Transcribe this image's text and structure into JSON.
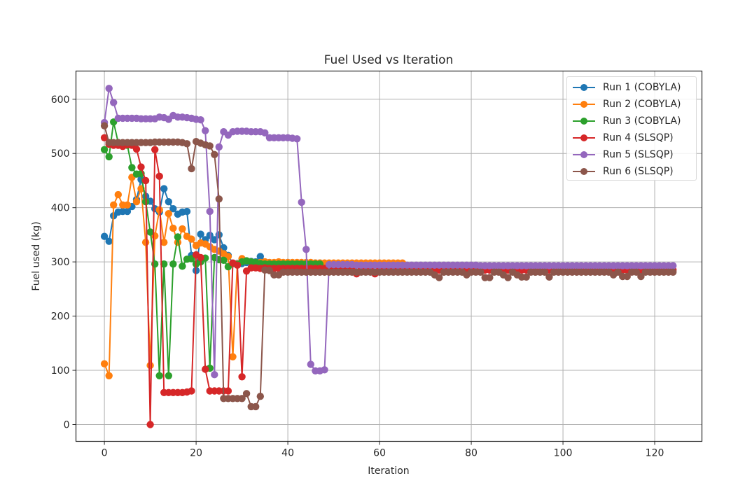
{
  "chart_data": {
    "type": "line",
    "title": "Fuel Used vs Iteration",
    "xlabel": "Iteration",
    "ylabel": "Fuel used (kg)",
    "xlim": [
      -6.2,
      130.3
    ],
    "ylim": [
      -31,
      652
    ],
    "xticks": [
      0,
      20,
      40,
      60,
      80,
      100,
      120
    ],
    "yticks": [
      0,
      100,
      200,
      300,
      400,
      500,
      600
    ],
    "grid": true,
    "legend_position": "upper right",
    "marker": "circle",
    "series": [
      {
        "name": "Run 1 (COBYLA)",
        "color": "#1f77b4",
        "x": [
          0,
          1,
          2,
          3,
          4,
          5,
          6,
          7,
          8,
          9,
          10,
          11,
          12,
          13,
          14,
          15,
          16,
          17,
          18,
          19,
          20,
          21,
          22,
          23,
          24,
          25,
          26,
          27,
          28,
          29,
          30,
          31,
          32,
          33,
          34,
          35,
          36,
          37,
          38,
          39,
          40,
          41,
          42,
          43,
          44,
          45,
          46,
          47
        ],
        "values": [
          347,
          338,
          385,
          392,
          393,
          393,
          402,
          415,
          452,
          421,
          412,
          398,
          392,
          435,
          411,
          398,
          388,
          392,
          393,
          312,
          284,
          351,
          341,
          349,
          341,
          350,
          326,
          312,
          297,
          297,
          297,
          299,
          301,
          300,
          310,
          300,
          298,
          298,
          298,
          298,
          299,
          298,
          298,
          298,
          298,
          298,
          298,
          298
        ]
      },
      {
        "name": "Run 2 (COBYLA)",
        "color": "#ff7f0e",
        "x": [
          0,
          1,
          2,
          3,
          4,
          5,
          6,
          7,
          8,
          9,
          10,
          11,
          12,
          13,
          14,
          15,
          16,
          17,
          18,
          19,
          20,
          21,
          22,
          23,
          24,
          25,
          26,
          27,
          28,
          29,
          30,
          31,
          32,
          33,
          34,
          35,
          36,
          37,
          38,
          39,
          40,
          41,
          42,
          43,
          44,
          45,
          46,
          47,
          48,
          49,
          50,
          51,
          52,
          53,
          54,
          55,
          56,
          57,
          58,
          59,
          60,
          61,
          62,
          63,
          64,
          65
        ],
        "values": [
          112,
          90,
          405,
          424,
          405,
          405,
          456,
          411,
          435,
          336,
          109,
          348,
          396,
          336,
          389,
          362,
          336,
          361,
          347,
          342,
          330,
          335,
          333,
          328,
          323,
          320,
          315,
          310,
          125,
          296,
          306,
          302,
          300,
          299,
          299,
          300,
          299,
          299,
          300,
          299,
          299,
          299,
          299,
          299,
          299,
          299,
          298,
          298,
          298,
          298,
          298,
          298,
          298,
          298,
          298,
          298,
          298,
          298,
          298,
          298,
          298,
          298,
          298,
          298,
          298,
          298
        ]
      },
      {
        "name": "Run 3 (COBYLA)",
        "color": "#2ca02c",
        "x": [
          0,
          1,
          2,
          3,
          4,
          5,
          6,
          7,
          8,
          9,
          10,
          11,
          12,
          13,
          14,
          15,
          16,
          17,
          18,
          19,
          20,
          21,
          22,
          23,
          24,
          25,
          26,
          27,
          28,
          29,
          30,
          31,
          32,
          33,
          34,
          35,
          36,
          37,
          38,
          39,
          40,
          41,
          42,
          43,
          44,
          45,
          46,
          47
        ],
        "values": [
          507,
          494,
          558,
          520,
          518,
          515,
          474,
          462,
          463,
          411,
          355,
          296,
          90,
          296,
          90,
          296,
          346,
          292,
          305,
          306,
          296,
          300,
          307,
          104,
          308,
          304,
          303,
          291,
          297,
          295,
          300,
          302,
          300,
          299,
          297,
          296,
          296,
          296,
          296,
          296,
          296,
          296,
          296,
          296,
          296,
          296,
          296,
          296
        ]
      },
      {
        "name": "Run 4 (SLSQP)",
        "color": "#d62728",
        "x": [
          0,
          1,
          2,
          3,
          4,
          5,
          6,
          7,
          8,
          9,
          10,
          11,
          12,
          13,
          14,
          15,
          16,
          17,
          18,
          19,
          20,
          21,
          22,
          23,
          24,
          25,
          26,
          27,
          28,
          29,
          30,
          31,
          32,
          33,
          34,
          35,
          36,
          37,
          38,
          39,
          40,
          41,
          42,
          43,
          44,
          45,
          46,
          47,
          48,
          49,
          50,
          51,
          52,
          53,
          54,
          55,
          56,
          57,
          58,
          59,
          60,
          61,
          62,
          63,
          64,
          65,
          66,
          67,
          68,
          69,
          70,
          71,
          72,
          73,
          74,
          75,
          76,
          77,
          78,
          79,
          80,
          81,
          82,
          83,
          84,
          85,
          86,
          87,
          88,
          89,
          90,
          91,
          92,
          93,
          94,
          95,
          96,
          97,
          98,
          99,
          100,
          101,
          102,
          103,
          104,
          105,
          106,
          107,
          108,
          109,
          110,
          111,
          112,
          113,
          114,
          115,
          116,
          117,
          118,
          119,
          120,
          121,
          122,
          123,
          124
        ],
        "values": [
          529,
          517,
          515,
          515,
          513,
          516,
          515,
          508,
          475,
          450,
          0,
          507,
          458,
          59,
          59,
          59,
          59,
          59,
          60,
          62,
          313,
          308,
          102,
          62,
          62,
          62,
          62,
          62,
          298,
          294,
          88,
          283,
          289,
          289,
          288,
          289,
          288,
          288,
          288,
          288,
          288,
          288,
          288,
          288,
          288,
          288,
          288,
          288,
          288,
          288,
          288,
          288,
          288,
          288,
          288,
          278,
          288,
          288,
          288,
          278,
          288,
          288,
          288,
          288,
          288,
          288,
          288,
          285,
          285,
          285,
          285,
          285,
          285,
          285,
          285,
          285,
          285,
          285,
          285,
          285,
          285,
          285,
          285,
          285,
          285,
          285,
          285,
          285,
          285,
          285,
          285,
          285,
          285,
          285,
          285,
          285,
          285,
          285,
          285,
          285,
          285,
          285,
          285,
          285,
          285,
          285,
          285,
          285,
          285,
          285,
          285,
          285,
          285,
          285,
          285,
          285,
          285,
          285,
          285,
          285,
          285,
          285,
          285,
          285,
          285
        ]
      },
      {
        "name": "Run 5 (SLSQP)",
        "color": "#9467bd",
        "x": [
          0,
          1,
          2,
          3,
          4,
          5,
          6,
          7,
          8,
          9,
          10,
          11,
          12,
          13,
          14,
          15,
          16,
          17,
          18,
          19,
          20,
          21,
          22,
          23,
          24,
          25,
          26,
          27,
          28,
          29,
          30,
          31,
          32,
          33,
          34,
          35,
          36,
          37,
          38,
          39,
          40,
          41,
          42,
          43,
          44,
          45,
          46,
          47,
          48,
          49,
          50,
          51,
          52,
          53,
          54,
          55,
          56,
          57,
          58,
          59,
          60,
          61,
          62,
          63,
          64,
          65,
          66,
          67,
          68,
          69,
          70,
          71,
          72,
          73,
          74,
          75,
          76,
          77,
          78,
          79,
          80,
          81,
          82,
          83,
          84,
          85,
          86,
          87,
          88,
          89,
          90,
          91,
          92,
          93,
          94,
          95,
          96,
          97,
          98,
          99,
          100,
          101,
          102,
          103,
          104,
          105,
          106,
          107,
          108,
          109,
          110,
          111,
          112,
          113,
          114,
          115,
          116,
          117,
          118,
          119,
          120,
          121,
          122,
          123,
          124
        ],
        "values": [
          557,
          620,
          594,
          565,
          565,
          565,
          565,
          565,
          564,
          564,
          564,
          564,
          567,
          566,
          563,
          570,
          567,
          567,
          566,
          565,
          563,
          562,
          542,
          393,
          92,
          512,
          540,
          534,
          540,
          541,
          541,
          541,
          540,
          540,
          540,
          538,
          529,
          529,
          529,
          529,
          529,
          528,
          527,
          410,
          323,
          111,
          99,
          99,
          101,
          295,
          295,
          295,
          295,
          295,
          295,
          294,
          294,
          294,
          294,
          294,
          294,
          294,
          294,
          294,
          294,
          294,
          294,
          294,
          294,
          294,
          294,
          294,
          294,
          294,
          294,
          294,
          294,
          294,
          294,
          294,
          294,
          294,
          293,
          293,
          293,
          293,
          293,
          293,
          293,
          293,
          293,
          293,
          293,
          293,
          293,
          293,
          293,
          293,
          293,
          293,
          293,
          293,
          293,
          293,
          293,
          293,
          293,
          293,
          293,
          293,
          293,
          293,
          293,
          293,
          293,
          293,
          293,
          293,
          293,
          293,
          293,
          293,
          293,
          293,
          293
        ]
      },
      {
        "name": "Run 6 (SLSQP)",
        "color": "#8c564b",
        "x": [
          0,
          1,
          2,
          3,
          4,
          5,
          6,
          7,
          8,
          9,
          10,
          11,
          12,
          13,
          14,
          15,
          16,
          17,
          18,
          19,
          20,
          21,
          22,
          23,
          24,
          25,
          26,
          27,
          28,
          29,
          30,
          31,
          32,
          33,
          34,
          35,
          36,
          37,
          38,
          39,
          40,
          41,
          42,
          43,
          44,
          45,
          46,
          47,
          48,
          49,
          50,
          51,
          52,
          53,
          54,
          55,
          56,
          57,
          58,
          59,
          60,
          61,
          62,
          63,
          64,
          65,
          66,
          67,
          68,
          69,
          70,
          71,
          72,
          73,
          74,
          75,
          76,
          77,
          78,
          79,
          80,
          81,
          82,
          83,
          84,
          85,
          86,
          87,
          88,
          89,
          90,
          91,
          92,
          93,
          94,
          95,
          96,
          97,
          98,
          99,
          100,
          101,
          102,
          103,
          104,
          105,
          106,
          107,
          108,
          109,
          110,
          111,
          112,
          113,
          114,
          115,
          116,
          117,
          118,
          119,
          120,
          121,
          122,
          123,
          124
        ],
        "values": [
          551,
          520,
          520,
          520,
          520,
          520,
          520,
          520,
          520,
          520,
          520,
          521,
          521,
          521,
          521,
          521,
          521,
          520,
          518,
          472,
          522,
          519,
          516,
          514,
          498,
          416,
          48,
          48,
          48,
          48,
          48,
          57,
          33,
          33,
          52,
          285,
          284,
          276,
          276,
          281,
          281,
          281,
          281,
          281,
          281,
          281,
          281,
          281,
          281,
          281,
          281,
          281,
          281,
          281,
          281,
          281,
          281,
          281,
          281,
          281,
          281,
          281,
          281,
          281,
          281,
          281,
          281,
          281,
          281,
          281,
          281,
          281,
          276,
          271,
          281,
          281,
          281,
          281,
          281,
          276,
          281,
          281,
          281,
          271,
          271,
          281,
          281,
          276,
          271,
          281,
          276,
          272,
          272,
          281,
          281,
          281,
          281,
          272,
          281,
          281,
          281,
          281,
          281,
          281,
          281,
          281,
          281,
          281,
          281,
          281,
          281,
          276,
          281,
          273,
          273,
          281,
          281,
          273,
          281,
          281,
          281,
          281,
          281,
          281,
          281
        ]
      }
    ]
  },
  "legend": {
    "items": [
      {
        "label": "Run 1 (COBYLA)",
        "color": "#1f77b4"
      },
      {
        "label": "Run 2 (COBYLA)",
        "color": "#ff7f0e"
      },
      {
        "label": "Run 3 (COBYLA)",
        "color": "#2ca02c"
      },
      {
        "label": "Run 4 (SLSQP)",
        "color": "#d62728"
      },
      {
        "label": "Run 5 (SLSQP)",
        "color": "#9467bd"
      },
      {
        "label": "Run 6 (SLSQP)",
        "color": "#8c564b"
      }
    ]
  }
}
